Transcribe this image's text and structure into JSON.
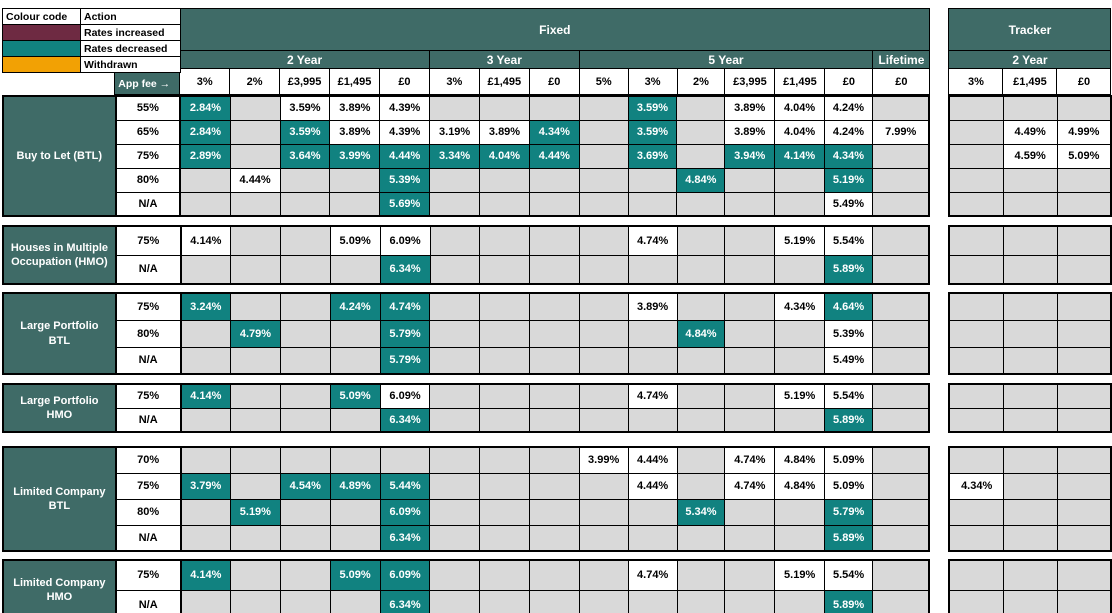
{
  "colors": {
    "header_teal": "#3f6b67",
    "rate_decreased_teal": "#118280",
    "rate_increased_maroon": "#6e2a42",
    "withdrawn_orange": "#f2a104",
    "empty_cell_grey": "#d9d9d9"
  },
  "legend": {
    "header": [
      "Colour code",
      "Action"
    ],
    "items": [
      {
        "label": "Rates increased",
        "color": "#6e2a42"
      },
      {
        "label": "Rates decreased",
        "color": "#118280"
      },
      {
        "label": "Withdrawn",
        "color": "#f2a104"
      }
    ]
  },
  "fixed": {
    "title": "Fixed",
    "app_fee_label": "App fee →",
    "groups": [
      {
        "label": "2 Year",
        "cols": [
          "3%",
          "2%",
          "£3,995",
          "£1,495",
          "£0"
        ]
      },
      {
        "label": "3 Year",
        "cols": [
          "3%",
          "£1,495",
          "£0"
        ]
      },
      {
        "label": "5 Year",
        "cols": [
          "5%",
          "3%",
          "2%",
          "£3,995",
          "£1,495",
          "£0"
        ]
      },
      {
        "label": "Lifetime",
        "cols": [
          "£0"
        ]
      }
    ]
  },
  "tracker": {
    "title": "Tracker",
    "groups": [
      {
        "label": "2 Year",
        "cols": [
          "3%",
          "£1,495",
          "£0"
        ]
      }
    ]
  },
  "sections": [
    {
      "label": "Buy to Let (BTL)",
      "rows": [
        {
          "ltv": "55%",
          "fixed": [
            {
              "v": "2.84%",
              "chg": "dec"
            },
            null,
            {
              "v": "3.59%"
            },
            {
              "v": "3.89%"
            },
            {
              "v": "4.39%"
            },
            null,
            null,
            null,
            null,
            {
              "v": "3.59%",
              "chg": "dec"
            },
            null,
            {
              "v": "3.89%"
            },
            {
              "v": "4.04%"
            },
            {
              "v": "4.24%"
            },
            null
          ],
          "tracker": [
            null,
            null,
            null
          ]
        },
        {
          "ltv": "65%",
          "fixed": [
            {
              "v": "2.84%",
              "chg": "dec"
            },
            null,
            {
              "v": "3.59%",
              "chg": "dec"
            },
            {
              "v": "3.89%"
            },
            {
              "v": "4.39%"
            },
            {
              "v": "3.19%"
            },
            {
              "v": "3.89%"
            },
            {
              "v": "4.34%",
              "chg": "dec"
            },
            null,
            {
              "v": "3.59%",
              "chg": "dec"
            },
            null,
            {
              "v": "3.89%"
            },
            {
              "v": "4.04%"
            },
            {
              "v": "4.24%"
            },
            {
              "v": "7.99%"
            }
          ],
          "tracker": [
            null,
            {
              "v": "4.49%"
            },
            {
              "v": "4.99%"
            }
          ]
        },
        {
          "ltv": "75%",
          "fixed": [
            {
              "v": "2.89%",
              "chg": "dec"
            },
            null,
            {
              "v": "3.64%",
              "chg": "dec"
            },
            {
              "v": "3.99%",
              "chg": "dec"
            },
            {
              "v": "4.44%",
              "chg": "dec"
            },
            {
              "v": "3.34%",
              "chg": "dec"
            },
            {
              "v": "4.04%",
              "chg": "dec"
            },
            {
              "v": "4.44%",
              "chg": "dec"
            },
            null,
            {
              "v": "3.69%",
              "chg": "dec"
            },
            null,
            {
              "v": "3.94%",
              "chg": "dec"
            },
            {
              "v": "4.14%",
              "chg": "dec"
            },
            {
              "v": "4.34%",
              "chg": "dec"
            },
            null
          ],
          "tracker": [
            null,
            {
              "v": "4.59%"
            },
            {
              "v": "5.09%"
            }
          ]
        },
        {
          "ltv": "80%",
          "fixed": [
            null,
            {
              "v": "4.44%"
            },
            null,
            null,
            {
              "v": "5.39%",
              "chg": "dec"
            },
            null,
            null,
            null,
            null,
            null,
            {
              "v": "4.84%",
              "chg": "dec"
            },
            null,
            null,
            {
              "v": "5.19%",
              "chg": "dec"
            },
            null
          ],
          "tracker": [
            null,
            null,
            null
          ]
        },
        {
          "ltv": "N/A",
          "fixed": [
            null,
            null,
            null,
            null,
            {
              "v": "5.69%",
              "chg": "dec"
            },
            null,
            null,
            null,
            null,
            null,
            null,
            null,
            null,
            {
              "v": "5.49%"
            },
            null
          ],
          "tracker": [
            null,
            null,
            null
          ]
        }
      ]
    },
    {
      "label": "Houses in Multiple Occupation (HMO)",
      "rows": [
        {
          "ltv": "75%",
          "fixed": [
            {
              "v": "4.14%"
            },
            null,
            null,
            {
              "v": "5.09%"
            },
            {
              "v": "6.09%"
            },
            null,
            null,
            null,
            null,
            {
              "v": "4.74%"
            },
            null,
            null,
            {
              "v": "5.19%"
            },
            {
              "v": "5.54%"
            },
            null
          ],
          "tracker": [
            null,
            null,
            null
          ]
        },
        {
          "ltv": "N/A",
          "fixed": [
            null,
            null,
            null,
            null,
            {
              "v": "6.34%",
              "chg": "dec"
            },
            null,
            null,
            null,
            null,
            null,
            null,
            null,
            null,
            {
              "v": "5.89%",
              "chg": "dec"
            },
            null
          ],
          "tracker": [
            null,
            null,
            null
          ]
        }
      ]
    },
    {
      "label": "Large Portfolio BTL",
      "rows": [
        {
          "ltv": "75%",
          "fixed": [
            {
              "v": "3.24%",
              "chg": "dec"
            },
            null,
            null,
            {
              "v": "4.24%",
              "chg": "dec"
            },
            {
              "v": "4.74%",
              "chg": "dec"
            },
            null,
            null,
            null,
            null,
            {
              "v": "3.89%"
            },
            null,
            null,
            {
              "v": "4.34%"
            },
            {
              "v": "4.64%",
              "chg": "dec"
            },
            null
          ],
          "tracker": [
            null,
            null,
            null
          ]
        },
        {
          "ltv": "80%",
          "fixed": [
            null,
            {
              "v": "4.79%",
              "chg": "dec"
            },
            null,
            null,
            {
              "v": "5.79%",
              "chg": "dec"
            },
            null,
            null,
            null,
            null,
            null,
            {
              "v": "4.84%",
              "chg": "dec"
            },
            null,
            null,
            {
              "v": "5.39%"
            },
            null
          ],
          "tracker": [
            null,
            null,
            null
          ]
        },
        {
          "ltv": "N/A",
          "fixed": [
            null,
            null,
            null,
            null,
            {
              "v": "5.79%",
              "chg": "dec"
            },
            null,
            null,
            null,
            null,
            null,
            null,
            null,
            null,
            {
              "v": "5.49%"
            },
            null
          ],
          "tracker": [
            null,
            null,
            null
          ]
        }
      ]
    },
    {
      "label": "Large Portfolio HMO",
      "rows": [
        {
          "ltv": "75%",
          "fixed": [
            {
              "v": "4.14%",
              "chg": "dec"
            },
            null,
            null,
            {
              "v": "5.09%",
              "chg": "dec"
            },
            {
              "v": "6.09%"
            },
            null,
            null,
            null,
            null,
            {
              "v": "4.74%"
            },
            null,
            null,
            {
              "v": "5.19%"
            },
            {
              "v": "5.54%"
            },
            null
          ],
          "tracker": [
            null,
            null,
            null
          ]
        },
        {
          "ltv": "N/A",
          "fixed": [
            null,
            null,
            null,
            null,
            {
              "v": "6.34%",
              "chg": "dec"
            },
            null,
            null,
            null,
            null,
            null,
            null,
            null,
            null,
            {
              "v": "5.89%",
              "chg": "dec"
            },
            null
          ],
          "tracker": [
            null,
            null,
            null
          ]
        }
      ]
    },
    {
      "label": "Limited Company BTL",
      "rows": [
        {
          "ltv": "70%",
          "fixed": [
            null,
            null,
            null,
            null,
            null,
            null,
            null,
            null,
            {
              "v": "3.99%"
            },
            {
              "v": "4.44%"
            },
            null,
            {
              "v": "4.74%"
            },
            {
              "v": "4.84%"
            },
            {
              "v": "5.09%"
            },
            null
          ],
          "tracker": [
            null,
            null,
            null
          ]
        },
        {
          "ltv": "75%",
          "fixed": [
            {
              "v": "3.79%",
              "chg": "dec"
            },
            null,
            {
              "v": "4.54%",
              "chg": "dec"
            },
            {
              "v": "4.89%",
              "chg": "dec"
            },
            {
              "v": "5.44%",
              "chg": "dec"
            },
            null,
            null,
            null,
            null,
            {
              "v": "4.44%"
            },
            null,
            {
              "v": "4.74%"
            },
            {
              "v": "4.84%"
            },
            {
              "v": "5.09%"
            },
            null
          ],
          "tracker": [
            {
              "v": "4.34%"
            },
            null,
            null
          ]
        },
        {
          "ltv": "80%",
          "fixed": [
            null,
            {
              "v": "5.19%",
              "chg": "dec"
            },
            null,
            null,
            {
              "v": "6.09%",
              "chg": "dec"
            },
            null,
            null,
            null,
            null,
            null,
            {
              "v": "5.34%",
              "chg": "dec"
            },
            null,
            null,
            {
              "v": "5.79%",
              "chg": "dec"
            },
            null
          ],
          "tracker": [
            null,
            null,
            null
          ]
        },
        {
          "ltv": "N/A",
          "fixed": [
            null,
            null,
            null,
            null,
            {
              "v": "6.34%",
              "chg": "dec"
            },
            null,
            null,
            null,
            null,
            null,
            null,
            null,
            null,
            {
              "v": "5.89%",
              "chg": "dec"
            },
            null
          ],
          "tracker": [
            null,
            null,
            null
          ]
        }
      ]
    },
    {
      "label": "Limited Company HMO",
      "rows": [
        {
          "ltv": "75%",
          "fixed": [
            {
              "v": "4.14%",
              "chg": "dec"
            },
            null,
            null,
            {
              "v": "5.09%",
              "chg": "dec"
            },
            {
              "v": "6.09%",
              "chg": "dec"
            },
            null,
            null,
            null,
            null,
            {
              "v": "4.74%"
            },
            null,
            null,
            {
              "v": "5.19%"
            },
            {
              "v": "5.54%"
            },
            null
          ],
          "tracker": [
            null,
            null,
            null
          ]
        },
        {
          "ltv": "N/A",
          "fixed": [
            null,
            null,
            null,
            null,
            {
              "v": "6.34%",
              "chg": "dec"
            },
            null,
            null,
            null,
            null,
            null,
            null,
            null,
            null,
            {
              "v": "5.89%",
              "chg": "dec"
            },
            null
          ],
          "tracker": [
            null,
            null,
            null
          ]
        }
      ]
    }
  ]
}
